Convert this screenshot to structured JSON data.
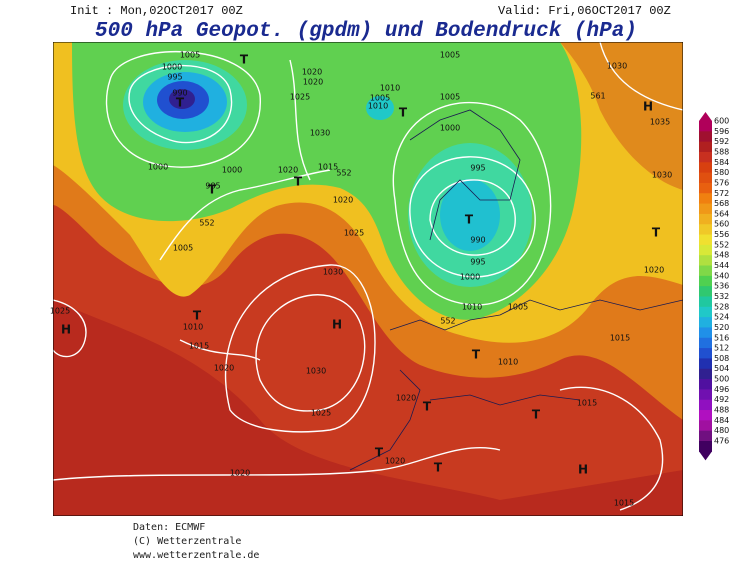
{
  "header": {
    "init": "Init : Mon,02OCT2017 00Z",
    "valid": "Valid: Fri,06OCT2017 00Z",
    "title": "500 hPa Geopot. (gpdm) und Bodendruck (hPa)"
  },
  "map": {
    "isobar_labels": [
      1005,
      1000,
      995,
      990,
      1020,
      1020,
      1025,
      1030,
      1000,
      1000,
      985,
      1020,
      1015,
      1005,
      1010,
      1005,
      1010,
      1005,
      1000,
      995,
      990,
      995,
      1000,
      1010,
      1005,
      1030,
      1035,
      1030,
      1020,
      1015,
      1010,
      1020,
      1025,
      1030,
      1005,
      1010,
      1015,
      1020,
      1030,
      1025,
      1020,
      1020,
      1020,
      1015,
      1015,
      1025
    ],
    "geopotential_labels": [
      552,
      552,
      561,
      552
    ],
    "pressure_centers": [
      "T",
      "T",
      "T",
      "T",
      "H",
      "T",
      "T",
      "H",
      "H",
      "T",
      "T",
      "T",
      "T",
      "T",
      "H",
      "T",
      "T"
    ]
  },
  "colorbar": {
    "levels": [
      600,
      596,
      592,
      588,
      584,
      580,
      576,
      572,
      568,
      564,
      560,
      556,
      552,
      548,
      544,
      540,
      536,
      532,
      528,
      524,
      520,
      516,
      512,
      508,
      504,
      500,
      496,
      492,
      488,
      484,
      480,
      476
    ],
    "colors": [
      "#b0005a",
      "#a01030",
      "#b02020",
      "#c83020",
      "#d84010",
      "#e05010",
      "#e86010",
      "#f08010",
      "#f09818",
      "#f0b020",
      "#f0c828",
      "#f0e030",
      "#d8e838",
      "#b0e040",
      "#80d848",
      "#50d050",
      "#30c870",
      "#20c8a0",
      "#20c8c8",
      "#20b0e0",
      "#2090e8",
      "#2070e0",
      "#2050d0",
      "#2030b0",
      "#302090",
      "#5010a0",
      "#7010b0",
      "#9010c0",
      "#b010c0",
      "#a010a0",
      "#701080",
      "#400060"
    ]
  },
  "footer": {
    "source": "Daten: ECMWF",
    "copyright": "(C) Wetterzentrale",
    "url": "www.wetterzentrale.de"
  }
}
